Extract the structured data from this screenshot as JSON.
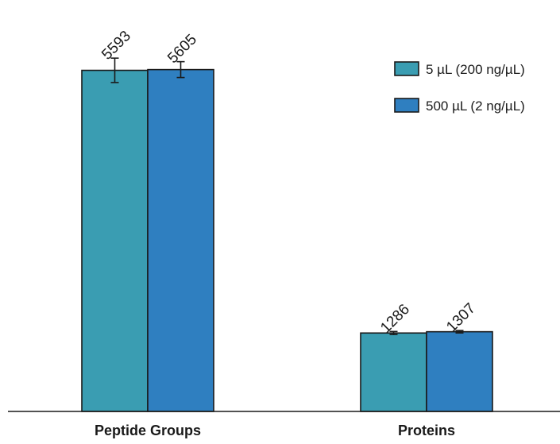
{
  "chart_data": {
    "type": "bar",
    "categories": [
      "Peptide Groups",
      "Proteins"
    ],
    "series": [
      {
        "name": "5 µL (200 ng/µL)",
        "color": "#3a9db2",
        "values": [
          5593,
          1286
        ],
        "errors": [
          200,
          25
        ]
      },
      {
        "name": "500 µL (2 ng/µL)",
        "color": "#2f7fc0",
        "values": [
          5605,
          1307
        ],
        "errors": [
          130,
          20
        ]
      }
    ],
    "data_labels": [
      [
        "5593",
        "1286"
      ],
      [
        "5605",
        "1307"
      ]
    ],
    "legend_position": "top-right",
    "grid": false,
    "ylim": [
      0,
      6500
    ],
    "title": "",
    "xlabel": "",
    "ylabel": ""
  }
}
